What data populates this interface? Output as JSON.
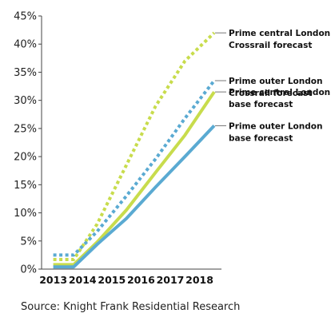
{
  "chart_data": {
    "type": "line",
    "x": [
      "2013",
      "2014",
      "2015",
      "2016",
      "2017",
      "2018"
    ],
    "y_tick_labels": [
      "0%",
      "5%",
      "10%",
      "15%",
      "20%",
      "25%",
      "30%",
      "35%",
      "40%",
      "45%"
    ],
    "ylim": [
      0,
      45
    ],
    "grid": false,
    "series": [
      {
        "name": "Prime central London Crossrail forecast",
        "name_lines": [
          "Prime central London",
          "Crossrail forecast"
        ],
        "color": "#c8dc4c",
        "style": "dotted",
        "points": [
          [
            2013,
            1.7
          ],
          [
            2013.7,
            1.7
          ],
          [
            2014.5,
            8.0
          ],
          [
            2015.5,
            18.5
          ],
          [
            2016.5,
            29.0
          ],
          [
            2017.5,
            37.0
          ],
          [
            2018.5,
            42.0
          ]
        ]
      },
      {
        "name": "Prime outer London Crossrail forecast",
        "name_lines": [
          "Prime outer London",
          "Crossrail forecast"
        ],
        "color": "#5aaad2",
        "style": "dotted",
        "points": [
          [
            2013,
            2.5
          ],
          [
            2013.7,
            2.5
          ],
          [
            2014.5,
            6.7
          ],
          [
            2015.5,
            13.0
          ],
          [
            2016.5,
            19.6
          ],
          [
            2017.5,
            26.8
          ],
          [
            2018.5,
            33.5
          ]
        ]
      },
      {
        "name": "Prime central London base forecast",
        "name_lines": [
          "Prime central London",
          "base forecast"
        ],
        "color": "#c8dc4c",
        "style": "solid",
        "points": [
          [
            2013,
            0.8
          ],
          [
            2013.7,
            0.8
          ],
          [
            2014.5,
            4.8
          ],
          [
            2015.5,
            10.5
          ],
          [
            2016.5,
            17.2
          ],
          [
            2017.5,
            23.8
          ],
          [
            2018.5,
            31.5
          ]
        ]
      },
      {
        "name": "Prime outer London base forecast",
        "name_lines": [
          "Prime outer London",
          "base forecast"
        ],
        "color": "#5aaad2",
        "style": "solid",
        "points": [
          [
            2013,
            0.4
          ],
          [
            2013.7,
            0.4
          ],
          [
            2014.5,
            4.4
          ],
          [
            2015.5,
            9.0
          ],
          [
            2016.5,
            14.6
          ],
          [
            2017.5,
            20.0
          ],
          [
            2018.5,
            25.5
          ]
        ]
      }
    ]
  },
  "source": "Source: Knight Frank Residential Research"
}
